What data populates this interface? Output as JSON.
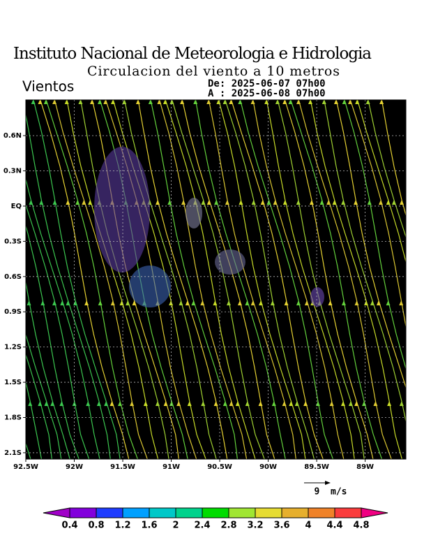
{
  "header": {
    "title": "Instituto Nacional de Meteorologia e Hidrologia",
    "subtitle": "Circulacion del viento a 10 metros",
    "variable": "Vientos",
    "from": "De: 2025-06-07 07h00",
    "to": "A : 2025-06-08 07h00"
  },
  "map": {
    "xlim": [
      -92.5,
      -88.58
    ],
    "ylim": [
      -2.154,
      0.904
    ],
    "xticks": [
      {
        "value": -92.5,
        "label": "92.5W"
      },
      {
        "value": -92,
        "label": "92W"
      },
      {
        "value": -91.5,
        "label": "91.5W"
      },
      {
        "value": -91,
        "label": "91W"
      },
      {
        "value": -90.5,
        "label": "90.5W"
      },
      {
        "value": -90,
        "label": "90W"
      },
      {
        "value": -89.5,
        "label": "89.5W"
      },
      {
        "value": -89,
        "label": "89W"
      }
    ],
    "yticks": [
      {
        "value": 0.6,
        "label": "0.6N"
      },
      {
        "value": 0.3,
        "label": "0.3N"
      },
      {
        "value": 0,
        "label": "EQ"
      },
      {
        "value": -0.3,
        "label": "0.3S"
      },
      {
        "value": -0.6,
        "label": "0.6S"
      },
      {
        "value": -0.9,
        "label": "0.9S"
      },
      {
        "value": -1.2,
        "label": "1.2S"
      },
      {
        "value": -1.5,
        "label": "1.5S"
      },
      {
        "value": -1.8,
        "label": "1.8S"
      },
      {
        "value": -2.1,
        "label": "2.1S"
      }
    ],
    "grid": true,
    "reference_vector": "9  m/s"
  },
  "colorbar": {
    "boundaries": [
      0.4,
      0.8,
      1.2,
      1.6,
      2,
      2.4,
      2.8,
      3.2,
      3.6,
      4,
      4.4,
      4.8
    ],
    "colors": [
      "#a000c8",
      "#8200dc",
      "#1e3cff",
      "#00a0ff",
      "#00c8c8",
      "#00d28c",
      "#00dc00",
      "#a0e632",
      "#e6dc32",
      "#e6af2d",
      "#f08228",
      "#fa3c3c",
      "#f00082"
    ]
  }
}
